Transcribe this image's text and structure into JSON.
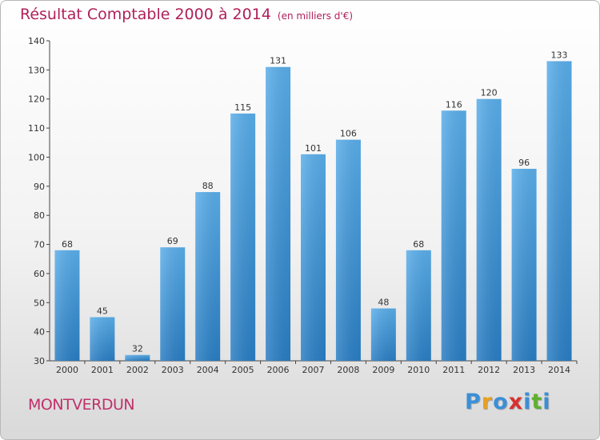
{
  "chart_data": {
    "type": "bar",
    "title": "Résultat Comptable 2000 à 2014",
    "subtitle": "(en milliers d'€)",
    "categories": [
      "2000",
      "2001",
      "2002",
      "2003",
      "2004",
      "2005",
      "2006",
      "2007",
      "2008",
      "2009",
      "2010",
      "2011",
      "2012",
      "2013",
      "2014"
    ],
    "values": [
      68,
      45,
      32,
      69,
      88,
      115,
      131,
      101,
      106,
      48,
      68,
      116,
      120,
      96,
      133
    ],
    "ylim": [
      30,
      140
    ],
    "yticks": [
      30,
      40,
      50,
      60,
      70,
      80,
      90,
      100,
      110,
      120,
      130,
      140
    ],
    "grid": false,
    "bar_color": "#4a9fe0"
  },
  "commune_name": "MONTVERDUN",
  "logo": {
    "text": "Proxiti",
    "letters": [
      {
        "char": "P",
        "color": "#3a8fd8"
      },
      {
        "char": "r",
        "color": "#e8a020"
      },
      {
        "char": "o",
        "color": "#3a8fd8"
      },
      {
        "char": "x",
        "color": "#d83030"
      },
      {
        "char": "i",
        "color": "#3a8fd8"
      },
      {
        "char": "t",
        "color": "#60b030"
      },
      {
        "char": "i",
        "color": "#3a8fd8"
      }
    ]
  }
}
